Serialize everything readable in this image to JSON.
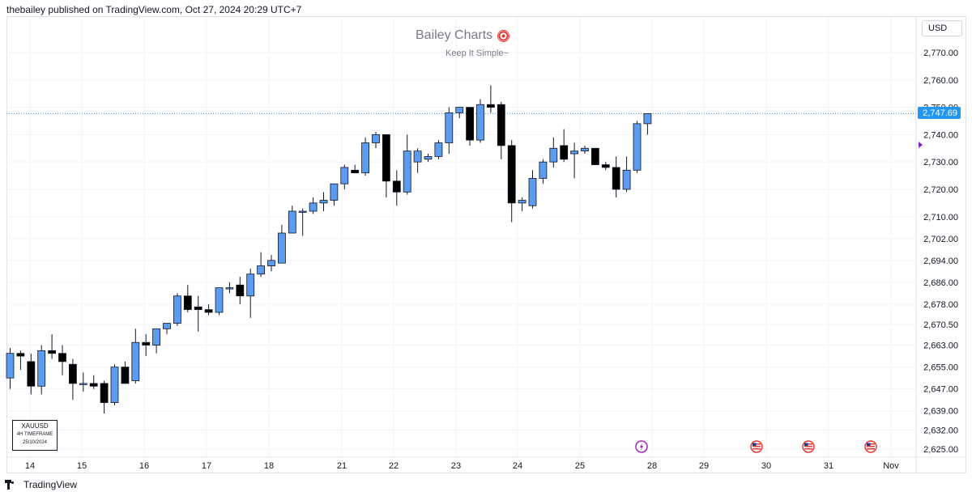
{
  "header": "thebailey published on TradingView.com, Oct 27, 2024 20:29 UTC+7",
  "watermark": {
    "title": "Bailey Charts",
    "subtitle": "Keep It Simple~",
    "icon": "target-icon"
  },
  "currency": "USD",
  "symbol_box": {
    "symbol": "XAUUSD",
    "timeframe": "4H TIMEFRAME",
    "date": "25/10/2024"
  },
  "last_price_label": "2,747.69",
  "footer": {
    "brand": "TradingView"
  },
  "events": [
    {
      "icon": "lightning-event-icon",
      "date": "28"
    },
    {
      "icon": "us-flag-event-icon",
      "date": "30"
    },
    {
      "icon": "us-flag-event-icon",
      "date": "31"
    },
    {
      "icon": "us-flag-event-icon",
      "date": "Nov"
    }
  ],
  "chart_data": {
    "type": "candlestick",
    "symbol": "XAUUSD",
    "timeframe": "4H",
    "colors": {
      "up": "#5b9cf0",
      "down": "#000000",
      "last_price_line": "#2196f3"
    },
    "grid": true,
    "y_axis": {
      "ticks": [
        "2,625.00",
        "2,632.00",
        "2,639.00",
        "2,647.00",
        "2,655.00",
        "2,663.00",
        "2,670.50",
        "2,678.00",
        "2,686.00",
        "2,694.00",
        "2,702.00",
        "2,710.00",
        "2,720.00",
        "2,730.00",
        "2,740.00",
        "2,750.00",
        "2,760.00",
        "2,770.00"
      ],
      "range": [
        2625,
        2770
      ]
    },
    "x_axis": {
      "ticks": [
        "14",
        "15",
        "16",
        "17",
        "18",
        "21",
        "22",
        "23",
        "24",
        "25",
        "28",
        "29",
        "30",
        "31",
        "Nov"
      ]
    },
    "last_price": 2747.69,
    "candles": [
      {
        "o": 2651,
        "h": 2662,
        "l": 2647,
        "c": 2660
      },
      {
        "o": 2660,
        "h": 2661,
        "l": 2654,
        "c": 2659
      },
      {
        "o": 2657,
        "h": 2660,
        "l": 2645,
        "c": 2648
      },
      {
        "o": 2648,
        "h": 2663,
        "l": 2645,
        "c": 2661
      },
      {
        "o": 2661,
        "h": 2667,
        "l": 2658,
        "c": 2660
      },
      {
        "o": 2660,
        "h": 2663,
        "l": 2652,
        "c": 2657
      },
      {
        "o": 2656,
        "h": 2658,
        "l": 2643,
        "c": 2649
      },
      {
        "o": 2649,
        "h": 2653,
        "l": 2646,
        "c": 2649
      },
      {
        "o": 2649,
        "h": 2652,
        "l": 2647,
        "c": 2648
      },
      {
        "o": 2649,
        "h": 2650,
        "l": 2638,
        "c": 2642
      },
      {
        "o": 2642,
        "h": 2656,
        "l": 2641,
        "c": 2655
      },
      {
        "o": 2655,
        "h": 2657,
        "l": 2649,
        "c": 2649
      },
      {
        "o": 2650,
        "h": 2669,
        "l": 2649,
        "c": 2664
      },
      {
        "o": 2664,
        "h": 2667,
        "l": 2659,
        "c": 2663
      },
      {
        "o": 2663,
        "h": 2669,
        "l": 2660,
        "c": 2669
      },
      {
        "o": 2669,
        "h": 2671,
        "l": 2667,
        "c": 2671
      },
      {
        "o": 2671,
        "h": 2682,
        "l": 2670,
        "c": 2681
      },
      {
        "o": 2681,
        "h": 2685,
        "l": 2675,
        "c": 2676
      },
      {
        "o": 2677,
        "h": 2681,
        "l": 2668,
        "c": 2676
      },
      {
        "o": 2676,
        "h": 2678,
        "l": 2674,
        "c": 2675
      },
      {
        "o": 2675,
        "h": 2684,
        "l": 2674,
        "c": 2684
      },
      {
        "o": 2684,
        "h": 2686,
        "l": 2682,
        "c": 2684
      },
      {
        "o": 2685,
        "h": 2688,
        "l": 2678,
        "c": 2681
      },
      {
        "o": 2681,
        "h": 2691,
        "l": 2673,
        "c": 2689
      },
      {
        "o": 2689,
        "h": 2697,
        "l": 2688,
        "c": 2692
      },
      {
        "o": 2692,
        "h": 2696,
        "l": 2690,
        "c": 2694
      },
      {
        "o": 2693,
        "h": 2707,
        "l": 2693,
        "c": 2704
      },
      {
        "o": 2704,
        "h": 2714,
        "l": 2704,
        "c": 2712
      },
      {
        "o": 2712,
        "h": 2713,
        "l": 2703,
        "c": 2712
      },
      {
        "o": 2712,
        "h": 2717,
        "l": 2711,
        "c": 2715
      },
      {
        "o": 2715,
        "h": 2719,
        "l": 2712,
        "c": 2716
      },
      {
        "o": 2716,
        "h": 2722,
        "l": 2714,
        "c": 2722
      },
      {
        "o": 2722,
        "h": 2729,
        "l": 2720,
        "c": 2728
      },
      {
        "o": 2727,
        "h": 2729,
        "l": 2726,
        "c": 2726
      },
      {
        "o": 2726,
        "h": 2739,
        "l": 2725,
        "c": 2737
      },
      {
        "o": 2737,
        "h": 2741,
        "l": 2735,
        "c": 2740
      },
      {
        "o": 2740,
        "h": 2740,
        "l": 2717,
        "c": 2723
      },
      {
        "o": 2723,
        "h": 2727,
        "l": 2714,
        "c": 2719
      },
      {
        "o": 2719,
        "h": 2740,
        "l": 2718,
        "c": 2734
      },
      {
        "o": 2730,
        "h": 2735,
        "l": 2726,
        "c": 2734
      },
      {
        "o": 2731,
        "h": 2733,
        "l": 2730,
        "c": 2732
      },
      {
        "o": 2732,
        "h": 2738,
        "l": 2731,
        "c": 2737
      },
      {
        "o": 2737,
        "h": 2750,
        "l": 2733,
        "c": 2748
      },
      {
        "o": 2748,
        "h": 2750,
        "l": 2746,
        "c": 2750
      },
      {
        "o": 2750,
        "h": 2750,
        "l": 2736,
        "c": 2738
      },
      {
        "o": 2738,
        "h": 2753,
        "l": 2737,
        "c": 2751
      },
      {
        "o": 2751,
        "h": 2758,
        "l": 2748,
        "c": 2750
      },
      {
        "o": 2751,
        "h": 2752,
        "l": 2731,
        "c": 2736
      },
      {
        "o": 2736,
        "h": 2738,
        "l": 2708,
        "c": 2715
      },
      {
        "o": 2715,
        "h": 2717,
        "l": 2712,
        "c": 2716
      },
      {
        "o": 2714,
        "h": 2727,
        "l": 2713,
        "c": 2724
      },
      {
        "o": 2724,
        "h": 2731,
        "l": 2722,
        "c": 2730
      },
      {
        "o": 2730,
        "h": 2739,
        "l": 2728,
        "c": 2735
      },
      {
        "o": 2736,
        "h": 2742,
        "l": 2730,
        "c": 2731
      },
      {
        "o": 2733,
        "h": 2737,
        "l": 2724,
        "c": 2734
      },
      {
        "o": 2734,
        "h": 2736,
        "l": 2733,
        "c": 2735
      },
      {
        "o": 2735,
        "h": 2735,
        "l": 2729,
        "c": 2729
      },
      {
        "o": 2729,
        "h": 2730,
        "l": 2727,
        "c": 2728
      },
      {
        "o": 2728,
        "h": 2732,
        "l": 2717,
        "c": 2720
      },
      {
        "o": 2720,
        "h": 2732,
        "l": 2719,
        "c": 2727
      },
      {
        "o": 2727,
        "h": 2745,
        "l": 2726,
        "c": 2744
      },
      {
        "o": 2744,
        "h": 2747,
        "l": 2740,
        "c": 2747.69
      }
    ]
  }
}
